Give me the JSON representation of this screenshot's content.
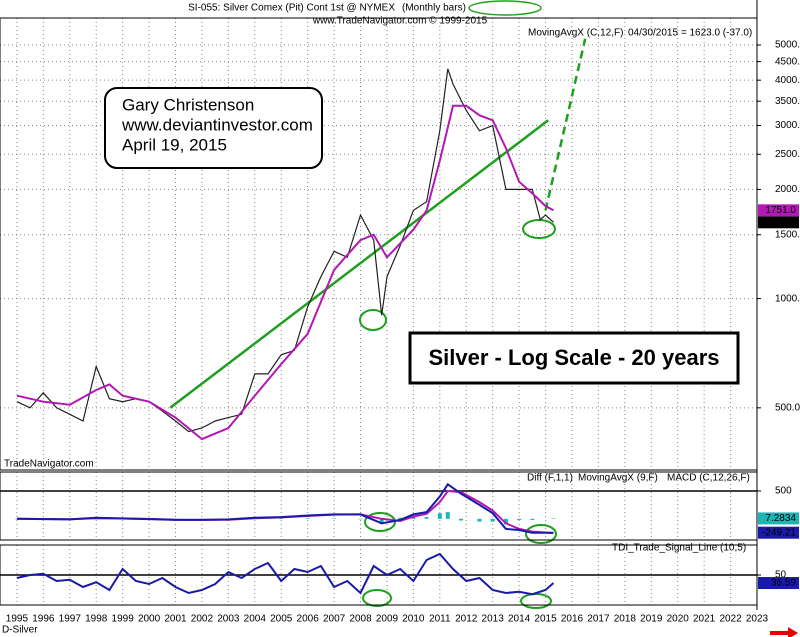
{
  "header": {
    "title": "SI-055:  Silver Comex (Pit) Cont 1st @ NYMEX",
    "title_tag": "(Monthly bars)",
    "subtitle": "www.TradeNavigator.com © 1999-2015",
    "quote": "04/30/2015 = 1623.0 (-37.0)",
    "watermark": "TradeNavigator.com",
    "symbol": "D-Silver"
  },
  "note": {
    "lines": [
      "Gary Christenson",
      "www.deviantinvestor.com",
      "April 19, 2015"
    ],
    "caption": "Silver - Log Scale - 20 years"
  },
  "chart_data": [
    {
      "type": "line",
      "log_scale": true,
      "grid": true,
      "xlim": [
        1994.36,
        2023
      ],
      "ylim": [
        337,
        5935
      ],
      "yticks": [
        {
          "value": 500,
          "label": "500.0"
        },
        {
          "value": 1000,
          "label": "1000.0"
        },
        {
          "value": 1500,
          "label": "1500.0"
        },
        {
          "value": 2000,
          "label": "2000.0"
        },
        {
          "value": 2500,
          "label": "2500.0"
        },
        {
          "value": 3000,
          "label": "3000.0"
        },
        {
          "value": 3500,
          "label": "3500.0"
        },
        {
          "value": 4000,
          "label": "4000.0"
        },
        {
          "value": 4500,
          "label": "4500.0"
        },
        {
          "value": 5000,
          "label": "5000.0"
        }
      ],
      "series": [
        {
          "color": "#222222",
          "style": "line",
          "last_label": "1623.0",
          "x": [
            1995,
            1995.5,
            1996,
            1996.5,
            1997,
            1997.5,
            1998,
            1998.5,
            1999,
            1999.5,
            2000,
            2000.5,
            2001,
            2001.5,
            2002,
            2002.5,
            2003,
            2003.5,
            2004,
            2004.5,
            2005,
            2005.5,
            2006,
            2006.5,
            2007,
            2007.5,
            2008,
            2008.5,
            2008.8,
            2009,
            2009.5,
            2010,
            2010.5,
            2011,
            2011.3,
            2011.5,
            2012,
            2012.5,
            2013,
            2013.5,
            2014,
            2014.5,
            2014.8,
            2015,
            2015.3
          ],
          "values": [
            520,
            500,
            550,
            500,
            480,
            460,
            650,
            530,
            520,
            530,
            520,
            490,
            460,
            430,
            440,
            460,
            470,
            480,
            620,
            620,
            700,
            720,
            950,
            1150,
            1350,
            1300,
            1700,
            1450,
            900,
            1150,
            1400,
            1750,
            1850,
            2900,
            4300,
            3900,
            3300,
            2900,
            3000,
            2000,
            2000,
            2000,
            1650,
            1700,
            1623
          ]
        },
        {
          "name": "MovingAvgX (C,12,F)",
          "color": "#b418b4",
          "style": "line",
          "last_label": "1751.0",
          "x": [
            1995,
            1996,
            1997,
            1998,
            1998.5,
            1999,
            2000,
            2001,
            2002,
            2003,
            2004,
            2005,
            2006,
            2007,
            2008,
            2008.5,
            2009,
            2010,
            2010.5,
            2011,
            2011.5,
            2012,
            2012.5,
            2013,
            2013.5,
            2014,
            2014.5,
            2015,
            2015.3
          ],
          "values": [
            540,
            520,
            510,
            560,
            580,
            540,
            520,
            470,
            410,
            440,
            540,
            660,
            800,
            1200,
            1450,
            1500,
            1300,
            1550,
            1750,
            2400,
            3400,
            3400,
            3200,
            3100,
            2600,
            2100,
            1950,
            1800,
            1751
          ]
        }
      ],
      "trend_lines": [
        {
          "color": "#1ea01e",
          "dashed": false,
          "x": [
            2000.8,
            2015.1
          ],
          "values": [
            500,
            3100
          ]
        },
        {
          "color": "#1ea01e",
          "dashed": true,
          "x": [
            2015.0,
            2016.5
          ],
          "values": [
            1750,
            5200
          ]
        }
      ]
    },
    {
      "type": "line",
      "xlim": [
        1994.36,
        2023
      ],
      "ylim": [
        -380,
        840
      ],
      "yticks": [
        500
      ],
      "series": [
        {
          "name": "Diff (F,1,1)",
          "color": "#1cb4b4",
          "style": "bars",
          "last_label": "7.2834",
          "x": [
            1995,
            1996,
            1997,
            1998,
            1999,
            2000,
            2001,
            2002,
            2003,
            2004,
            2005,
            2006,
            2007,
            2008,
            2008.8,
            2009.5,
            2010,
            2010.5,
            2011,
            2011.3,
            2011.8,
            2012.5,
            2013,
            2013.5,
            2014,
            2014.5,
            2015.3
          ],
          "values": [
            0,
            -2,
            -2,
            10,
            -3,
            -3,
            -5,
            0,
            5,
            10,
            5,
            10,
            5,
            0,
            -80,
            20,
            40,
            30,
            100,
            120,
            -30,
            -50,
            -50,
            -100,
            -20,
            -20,
            7.2834
          ]
        },
        {
          "name": "MovingAvgX (9,F)",
          "color": "#b418b4",
          "style": "line",
          "x": [
            1995,
            1996,
            1997,
            1998,
            1999,
            2000,
            2001,
            2002,
            2003,
            2004,
            2005,
            2006,
            2007,
            2008,
            2008.8,
            2009.5,
            2010,
            2010.5,
            2011,
            2011.3,
            2011.8,
            2012.5,
            2013,
            2013.5,
            2014,
            2014.5,
            2015.3
          ],
          "values": [
            0,
            -3,
            -8,
            10,
            8,
            -2,
            -15,
            -20,
            -15,
            10,
            25,
            50,
            75,
            80,
            0,
            -40,
            40,
            90,
            300,
            500,
            480,
            300,
            150,
            -80,
            -180,
            -230,
            -256.49
          ]
        },
        {
          "name": "MACD (C,12,26,F)",
          "color": "#1a1aa8",
          "style": "line",
          "last_label": "-249.21",
          "x": [
            1995,
            1996,
            1997,
            1998,
            1999,
            2000,
            2001,
            2002,
            2003,
            2004,
            2005,
            2006,
            2007,
            2008,
            2008.8,
            2009.5,
            2010,
            2010.5,
            2011,
            2011.3,
            2011.8,
            2012.5,
            2013,
            2013.5,
            2014,
            2014.5,
            2015.3
          ],
          "values": [
            0,
            -5,
            -10,
            20,
            5,
            -5,
            -20,
            -20,
            -10,
            20,
            30,
            60,
            80,
            80,
            -80,
            -20,
            80,
            120,
            400,
            620,
            450,
            250,
            100,
            -180,
            -200,
            -250,
            -249.21
          ]
        }
      ]
    },
    {
      "type": "line",
      "xlim": [
        1994.36,
        2023
      ],
      "ylim": [
        0,
        100
      ],
      "yticks": [
        50
      ],
      "xticks": [
        1995,
        1996,
        1997,
        1998,
        1999,
        2000,
        2001,
        2002,
        2003,
        2004,
        2005,
        2006,
        2007,
        2008,
        2009,
        2010,
        2011,
        2012,
        2013,
        2014,
        2015,
        2016,
        2017,
        2018,
        2019,
        2020,
        2021,
        2022,
        2023
      ],
      "series": [
        {
          "name": "TDI_Trade_Signal_Line (10,5)",
          "color": "#1a1aa8",
          "style": "line",
          "last_label": "36.59",
          "x": [
            1995,
            1995.5,
            1996,
            1996.5,
            1997,
            1997.5,
            1998,
            1998.5,
            1999,
            1999.5,
            2000,
            2000.5,
            2001,
            2001.5,
            2002,
            2002.5,
            2003,
            2003.5,
            2004,
            2004.5,
            2005,
            2005.5,
            2006,
            2006.5,
            2007,
            2007.5,
            2008,
            2008.5,
            2009,
            2009.5,
            2010,
            2010.5,
            2011,
            2011.5,
            2012,
            2012.5,
            2013,
            2013.5,
            2014,
            2014.5,
            2015,
            2015.3
          ],
          "values": [
            45,
            50,
            52,
            40,
            42,
            30,
            38,
            25,
            60,
            40,
            35,
            45,
            30,
            20,
            25,
            35,
            55,
            45,
            60,
            70,
            40,
            60,
            55,
            65,
            30,
            40,
            20,
            65,
            50,
            60,
            40,
            75,
            85,
            60,
            40,
            45,
            25,
            20,
            22,
            18,
            25,
            36.59
          ]
        }
      ]
    }
  ]
}
